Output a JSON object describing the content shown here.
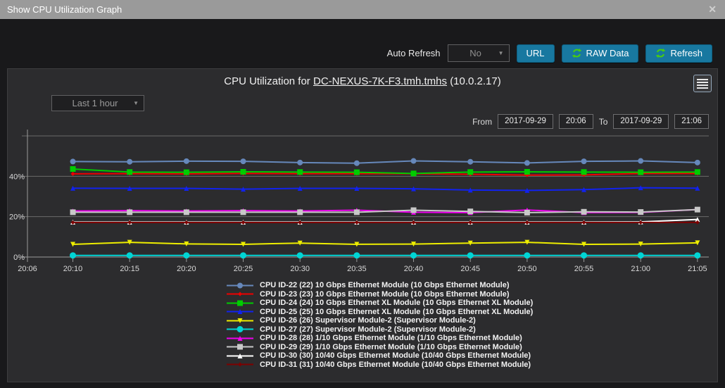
{
  "titlebar": {
    "title": "Show CPU Utilization Graph",
    "close_glyph": "✕"
  },
  "toolbar": {
    "auto_refresh_label": "Auto Refresh",
    "auto_refresh_value": "No",
    "url_button": "URL",
    "raw_data_button": "RAW Data",
    "refresh_button": "Refresh",
    "refresh_icon_color": "#49cc11",
    "button_color": "#1878a0"
  },
  "chart_header": {
    "title_prefix": "CPU Utilization for",
    "host": "DC-NEXUS-7K-F3.tmh.tmhs",
    "ip": "(10.0.2.17)"
  },
  "controls": {
    "time_range_value": "Last 1 hour",
    "from_label": "From",
    "from_date": "2017-09-29",
    "from_time": "20:06",
    "to_label": "To",
    "to_date": "2017-09-29",
    "to_time": "21:06"
  },
  "chart_data": {
    "type": "line",
    "x_range": [
      "20:06",
      "21:06"
    ],
    "x_axis_labels": [
      "20:06",
      "20:10",
      "20:15",
      "20:20",
      "20:25",
      "20:30",
      "20:35",
      "20:40",
      "20:45",
      "20:50",
      "20:55",
      "21:00",
      "21:05"
    ],
    "x": [
      "20:10",
      "20:15",
      "20:20",
      "20:25",
      "20:30",
      "20:35",
      "20:40",
      "20:45",
      "20:50",
      "20:55",
      "21:00",
      "21:05"
    ],
    "ylim": [
      0,
      60
    ],
    "y_ticks": [
      {
        "v": 0,
        "label": "0%"
      },
      {
        "v": 20,
        "label": "20%"
      },
      {
        "v": 40,
        "label": "40%"
      }
    ],
    "grid": true,
    "legend_position": "bottom",
    "series": [
      {
        "id": "cpu-22",
        "label": "CPU ID-22 (22) 10 Gbps Ethernet Module (10 Gbps Ethernet Module)",
        "color": "#6688bb",
        "marker": "circle",
        "marker_size": 8,
        "values": [
          47.3,
          47.2,
          47.5,
          47.4,
          46.8,
          46.5,
          47.6,
          47.2,
          46.6,
          47.4,
          47.6,
          46.8
        ]
      },
      {
        "id": "cpu-23",
        "label": "CPU ID-23 (23) 10 Gbps Ethernet Module (10 Gbps Ethernet Module)",
        "color": "#ee0000",
        "marker": "diamond",
        "marker_size": 6,
        "values": [
          41.2,
          41.3,
          41.2,
          41.4,
          41.3,
          41.3,
          41.3,
          41.0,
          40.6,
          40.7,
          41.4,
          41.4
        ]
      },
      {
        "id": "cpu-24",
        "label": "CPU ID-24 (24) 10 Gbps Ethernet XL Module (10 Gbps Ethernet XL Module)",
        "color": "#00cc00",
        "marker": "square",
        "marker_size": 8,
        "values": [
          43.6,
          42.1,
          42.0,
          42.2,
          42.1,
          42.0,
          41.4,
          42.1,
          42.2,
          42.1,
          42.0,
          42.1
        ]
      },
      {
        "id": "cpu-25",
        "label": "CPU ID-25 (25) 10 Gbps Ethernet XL Module (10 Gbps Ethernet XL Module)",
        "color": "#1122ee",
        "marker": "triangle",
        "marker_size": 7,
        "values": [
          34.1,
          34.0,
          34.0,
          33.6,
          34.0,
          34.0,
          33.8,
          33.2,
          33.0,
          33.4,
          34.3,
          34.1
        ]
      },
      {
        "id": "cpu-26",
        "label": "CPU ID-26 (26) Supervisor Module-2 (Supervisor Module-2)",
        "color": "#eeee00",
        "marker": "triangle-down",
        "marker_size": 7,
        "values": [
          6.3,
          7.3,
          6.5,
          6.3,
          6.9,
          6.3,
          6.4,
          6.9,
          7.3,
          6.3,
          6.4,
          7.0
        ]
      },
      {
        "id": "cpu-27",
        "label": "CPU ID-27 (27) Supervisor Module-2 (Supervisor Module-2)",
        "color": "#00d5d5",
        "marker": "circle",
        "marker_size": 9,
        "values": [
          0.8,
          0.8,
          0.8,
          0.8,
          0.8,
          0.8,
          0.8,
          0.8,
          0.8,
          0.8,
          0.8,
          0.8
        ]
      },
      {
        "id": "cpu-28",
        "label": "CPU ID-28 (28) 1/10 Gbps Ethernet Module (1/10 Gbps Ethernet Module)",
        "color": "#ee00ee",
        "marker": "triangle",
        "marker_size": 7,
        "values": [
          22.8,
          23.0,
          22.8,
          23.0,
          22.8,
          23.2,
          22.2,
          22.0,
          23.3,
          22.0,
          22.1,
          23.5
        ]
      },
      {
        "id": "cpu-29",
        "label": "CPU ID-29 (29) 1/10 Gbps Ethernet Module (1/10 Gbps Ethernet Module)",
        "color": "#c8c8c8",
        "marker": "square",
        "marker_size": 8,
        "values": [
          22.2,
          22.2,
          22.2,
          22.2,
          22.2,
          22.2,
          23.2,
          22.6,
          22.0,
          22.4,
          22.3,
          23.5
        ]
      },
      {
        "id": "cpu-30",
        "label": "CPU ID-30 (30) 10/40 Gbps Ethernet Module (10/40 Gbps Ethernet Module)",
        "color": "#ffffff",
        "marker": "triangle",
        "marker_size": 7,
        "values": [
          17.3,
          17.3,
          17.3,
          17.3,
          17.3,
          17.3,
          17.3,
          17.3,
          17.3,
          17.3,
          17.4,
          18.6
        ]
      },
      {
        "id": "cpu-31",
        "label": "CPU ID-31 (31) 10/40 Gbps Ethernet Module (10/40 Gbps Ethernet Module)",
        "color": "#7d0000",
        "marker": "diamond",
        "marker_size": 6,
        "values": [
          17.1,
          17.1,
          17.1,
          17.1,
          17.1,
          17.1,
          17.1,
          17.1,
          17.1,
          17.1,
          17.1,
          17.2
        ]
      }
    ]
  }
}
